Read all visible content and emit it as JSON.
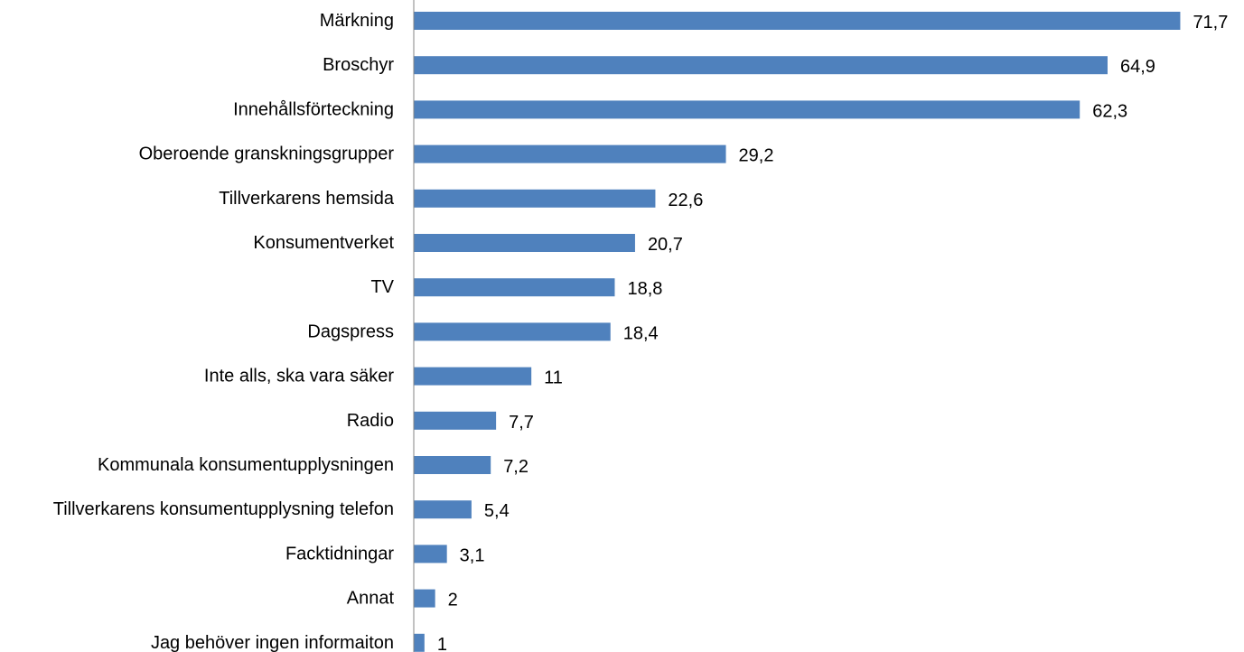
{
  "chart_data": {
    "type": "bar",
    "orientation": "horizontal",
    "title": "",
    "xlabel": "",
    "ylabel": "",
    "categories": [
      "Märkning",
      "Broschyr",
      "Innehållsförteckning",
      "Oberoende granskningsgrupper",
      "Tillverkarens hemsida",
      "Konsumentverket",
      "TV",
      "Dagspress",
      "Inte alls, ska vara säker",
      "Radio",
      "Kommunala konsumentupplysningen",
      "Tillverkarens konsumentupplysning telefon",
      "Facktidningar",
      "Annat",
      "Jag behöver ingen informaiton"
    ],
    "values": [
      71.7,
      64.9,
      62.3,
      29.2,
      22.6,
      20.7,
      18.8,
      18.4,
      11,
      7.7,
      7.2,
      5.4,
      3.1,
      2,
      1
    ],
    "value_labels": [
      "71,7",
      "64,9",
      "62,3",
      "29,2",
      "22,6",
      "20,7",
      "18,8",
      "18,4",
      "11",
      "7,7",
      "7,2",
      "5,4",
      "3,1",
      "2",
      "1"
    ],
    "xlim": [
      0,
      72
    ],
    "grid": false,
    "legend": "none",
    "bar_color": "#4F81BD",
    "axis_color": "#868686"
  }
}
